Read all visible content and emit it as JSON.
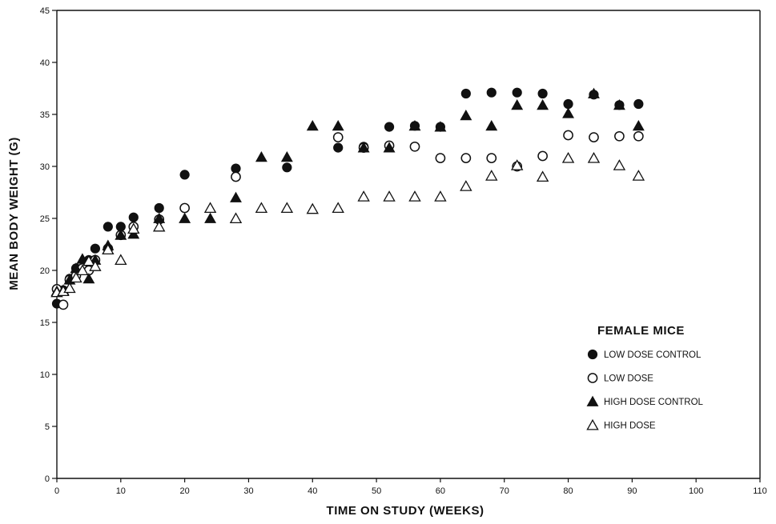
{
  "chart_data": {
    "type": "scatter",
    "xlabel": "TIME ON STUDY (WEEKS)",
    "ylabel": "MEAN BODY WEIGHT (G)",
    "xlim": [
      0,
      110
    ],
    "ylim": [
      0,
      45
    ],
    "x_ticks": [
      0,
      10,
      20,
      30,
      40,
      50,
      60,
      70,
      80,
      90,
      100,
      110
    ],
    "y_ticks": [
      0,
      5,
      10,
      15,
      20,
      25,
      30,
      35,
      40,
      45
    ],
    "x_tick_labels": [
      "0",
      "10",
      "20",
      "30",
      "40",
      "50",
      "60",
      "70",
      "80",
      "90",
      "100",
      "110"
    ],
    "y_tick_labels": [
      "0",
      "5",
      "10",
      "15",
      "20",
      "25",
      "30",
      "35",
      "40",
      "45"
    ],
    "grid": false,
    "legend": {
      "title": "FEMALE MICE",
      "placement": "right"
    },
    "series": [
      {
        "name": "LOW DOSE CONTROL",
        "marker": "filled-circle",
        "points": [
          [
            0,
            16.8
          ],
          [
            1,
            18.1
          ],
          [
            2,
            19.2
          ],
          [
            3,
            20.2
          ],
          [
            4,
            20.1
          ],
          [
            5,
            21.0
          ],
          [
            6,
            22.1
          ],
          [
            8,
            24.2
          ],
          [
            10,
            24.2
          ],
          [
            12,
            25.1
          ],
          [
            16,
            26.0
          ],
          [
            20,
            29.2
          ],
          [
            28,
            29.8
          ],
          [
            36,
            29.9
          ],
          [
            44,
            31.8
          ],
          [
            48,
            31.9
          ],
          [
            52,
            33.8
          ],
          [
            56,
            33.9
          ],
          [
            60,
            33.8
          ],
          [
            64,
            37.0
          ],
          [
            68,
            37.1
          ],
          [
            72,
            37.1
          ],
          [
            76,
            37.0
          ],
          [
            80,
            36.0
          ],
          [
            84,
            36.9
          ],
          [
            88,
            35.9
          ],
          [
            91,
            36.0
          ]
        ]
      },
      {
        "name": "LOW DOSE",
        "marker": "open-circle",
        "points": [
          [
            0,
            18.2
          ],
          [
            1,
            16.7
          ],
          [
            2,
            19.1
          ],
          [
            3,
            19.5
          ],
          [
            4,
            20.2
          ],
          [
            5,
            20.0
          ],
          [
            6,
            21.0
          ],
          [
            8,
            22.1
          ],
          [
            10,
            23.4
          ],
          [
            12,
            24.2
          ],
          [
            16,
            24.9
          ],
          [
            20,
            26.0
          ],
          [
            28,
            29.0
          ],
          [
            44,
            32.8
          ],
          [
            48,
            31.8
          ],
          [
            52,
            32.0
          ],
          [
            56,
            31.9
          ],
          [
            60,
            30.8
          ],
          [
            64,
            30.8
          ],
          [
            68,
            30.8
          ],
          [
            72,
            30.0
          ],
          [
            76,
            31.0
          ],
          [
            80,
            33.0
          ],
          [
            84,
            32.8
          ],
          [
            88,
            32.9
          ],
          [
            91,
            32.9
          ]
        ]
      },
      {
        "name": "HIGH DOSE CONTROL",
        "marker": "filled-triangle",
        "points": [
          [
            0,
            18.0
          ],
          [
            1,
            18.1
          ],
          [
            2,
            19.1
          ],
          [
            3,
            20.2
          ],
          [
            4,
            21.1
          ],
          [
            5,
            19.2
          ],
          [
            6,
            21.0
          ],
          [
            8,
            22.4
          ],
          [
            10,
            23.4
          ],
          [
            12,
            23.5
          ],
          [
            16,
            25.0
          ],
          [
            20,
            25.0
          ],
          [
            24,
            25.0
          ],
          [
            28,
            27.0
          ],
          [
            32,
            30.9
          ],
          [
            36,
            30.9
          ],
          [
            40,
            33.9
          ],
          [
            44,
            33.9
          ],
          [
            48,
            31.8
          ],
          [
            52,
            31.8
          ],
          [
            56,
            33.9
          ],
          [
            60,
            33.8
          ],
          [
            64,
            34.9
          ],
          [
            68,
            33.9
          ],
          [
            72,
            35.9
          ],
          [
            76,
            35.9
          ],
          [
            80,
            35.1
          ],
          [
            84,
            37.0
          ],
          [
            88,
            35.9
          ],
          [
            91,
            33.9
          ]
        ]
      },
      {
        "name": "HIGH DOSE",
        "marker": "open-triangle",
        "points": [
          [
            0,
            17.9
          ],
          [
            1,
            18.0
          ],
          [
            2,
            18.3
          ],
          [
            3,
            19.3
          ],
          [
            4,
            20.0
          ],
          [
            5,
            20.9
          ],
          [
            6,
            20.4
          ],
          [
            8,
            22.0
          ],
          [
            10,
            21.0
          ],
          [
            12,
            24.0
          ],
          [
            16,
            24.2
          ],
          [
            24,
            26.0
          ],
          [
            28,
            25.0
          ],
          [
            32,
            26.0
          ],
          [
            36,
            26.0
          ],
          [
            40,
            25.9
          ],
          [
            44,
            26.0
          ],
          [
            48,
            27.1
          ],
          [
            52,
            27.1
          ],
          [
            56,
            27.1
          ],
          [
            60,
            27.1
          ],
          [
            64,
            28.1
          ],
          [
            68,
            29.1
          ],
          [
            72,
            30.1
          ],
          [
            76,
            29.0
          ],
          [
            80,
            30.8
          ],
          [
            84,
            30.8
          ],
          [
            88,
            30.1
          ],
          [
            91,
            29.1
          ]
        ]
      }
    ]
  }
}
